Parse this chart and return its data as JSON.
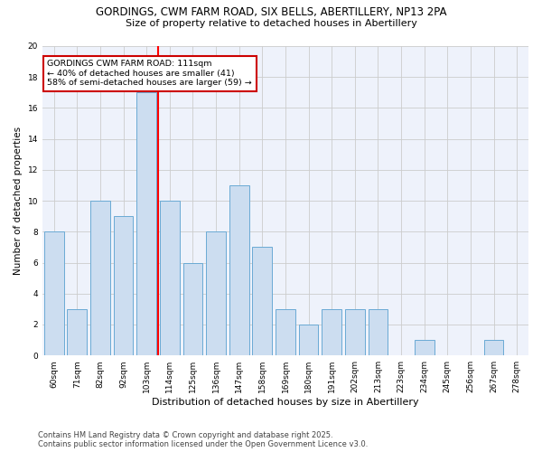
{
  "title_line1": "GORDINGS, CWM FARM ROAD, SIX BELLS, ABERTILLERY, NP13 2PA",
  "title_line2": "Size of property relative to detached houses in Abertillery",
  "xlabel": "Distribution of detached houses by size in Abertillery",
  "ylabel": "Number of detached properties",
  "categories": [
    "60sqm",
    "71sqm",
    "82sqm",
    "92sqm",
    "103sqm",
    "114sqm",
    "125sqm",
    "136sqm",
    "147sqm",
    "158sqm",
    "169sqm",
    "180sqm",
    "191sqm",
    "202sqm",
    "213sqm",
    "223sqm",
    "234sqm",
    "245sqm",
    "256sqm",
    "267sqm",
    "278sqm"
  ],
  "values": [
    8,
    3,
    10,
    9,
    17,
    10,
    6,
    8,
    11,
    7,
    3,
    2,
    3,
    3,
    3,
    0,
    1,
    0,
    0,
    1,
    0
  ],
  "bar_color": "#ccddf0",
  "bar_edge_color": "#6aaad4",
  "annotation_text": "GORDINGS CWM FARM ROAD: 111sqm\n← 40% of detached houses are smaller (41)\n58% of semi-detached houses are larger (59) →",
  "annotation_box_color": "#ffffff",
  "annotation_box_edge_color": "#cc0000",
  "ylim": [
    0,
    20
  ],
  "yticks": [
    0,
    2,
    4,
    6,
    8,
    10,
    12,
    14,
    16,
    18,
    20
  ],
  "grid_color": "#cccccc",
  "background_color": "#eef2fb",
  "footer_text": "Contains HM Land Registry data © Crown copyright and database right 2025.\nContains public sector information licensed under the Open Government Licence v3.0.",
  "title_fontsize": 8.5,
  "subtitle_fontsize": 8.0,
  "xlabel_fontsize": 8.0,
  "ylabel_fontsize": 7.5,
  "tick_fontsize": 6.5,
  "annotation_fontsize": 6.8,
  "footer_fontsize": 6.0,
  "red_line_x": 4.5
}
